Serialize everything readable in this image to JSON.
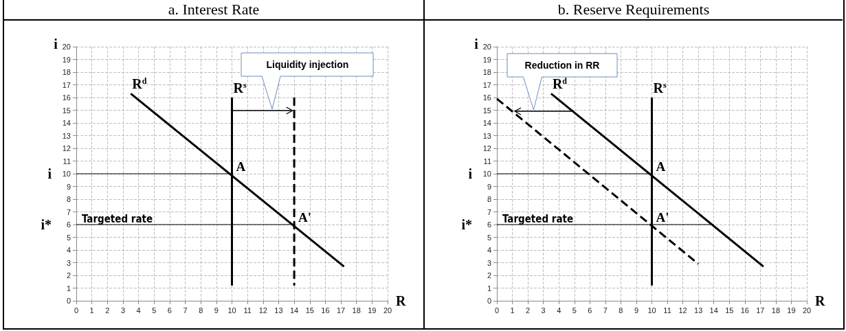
{
  "chart_data": [
    {
      "type": "line",
      "title": "a. Interest Rate",
      "xlabel": "R",
      "ylabel": "i",
      "xlim": [
        0,
        20
      ],
      "ylim": [
        0,
        20
      ],
      "xticks": [
        0,
        1,
        2,
        3,
        4,
        5,
        6,
        7,
        8,
        9,
        10,
        11,
        12,
        13,
        14,
        15,
        16,
        17,
        18,
        19,
        20
      ],
      "yticks": [
        0,
        1,
        2,
        3,
        4,
        5,
        6,
        7,
        8,
        9,
        10,
        11,
        12,
        13,
        14,
        15,
        16,
        17,
        18,
        19,
        20
      ],
      "grid": true,
      "legend": false,
      "marker": "none",
      "series": [
        {
          "name": "R$^{d}$",
          "color": "#000000",
          "x": [
            3.5,
            17.2
          ],
          "values": [
            16.3,
            2.7
          ]
        },
        {
          "name": "R$^{s}$",
          "color": "#000000",
          "x": [
            10,
            10
          ],
          "values": [
            16,
            1.2
          ]
        },
        {
          "color": "#000000",
          "line_style": "dashed",
          "x": [
            14,
            14
          ],
          "values": [
            16,
            1.2
          ]
        },
        {
          "name": "i",
          "color": "#000000",
          "x": [
            0,
            10
          ],
          "values": [
            10,
            10
          ]
        },
        {
          "name": "i*",
          "color": "#000000",
          "x": [
            0,
            14
          ],
          "values": [
            6,
            6
          ]
        }
      ],
      "annotations": [
        {
          "text": "A",
          "x": 10,
          "y": 10
        },
        {
          "text": "A'",
          "x": 14,
          "y": 6
        },
        {
          "text": "Targeted rate",
          "x": 0,
          "y": 6
        },
        "Liquidity injection"
      ]
    },
    {
      "type": "line",
      "title": "b. Reserve Requirements",
      "xlabel": "R",
      "ylabel": "i",
      "xlim": [
        0,
        20
      ],
      "ylim": [
        0,
        20
      ],
      "xticks": [
        0,
        1,
        2,
        3,
        4,
        5,
        6,
        7,
        8,
        9,
        10,
        11,
        12,
        13,
        14,
        15,
        16,
        17,
        18,
        19,
        20
      ],
      "yticks": [
        0,
        1,
        2,
        3,
        4,
        5,
        6,
        7,
        8,
        9,
        10,
        11,
        12,
        13,
        14,
        15,
        16,
        17,
        18,
        19,
        20
      ],
      "grid": true,
      "legend": false,
      "marker": "none",
      "series": [
        {
          "name": "R$^{d}$",
          "color": "#000000",
          "x": [
            3.5,
            17.2
          ],
          "values": [
            16.3,
            2.7
          ]
        },
        {
          "name": "R$^{s}$",
          "color": "#000000",
          "x": [
            10,
            10
          ],
          "values": [
            16,
            1.2
          ]
        },
        {
          "color": "#000000",
          "line_style": "dashed",
          "x": [
            0,
            13
          ],
          "values": [
            15.9,
            2.9
          ]
        },
        {
          "name": "i",
          "color": "#000000",
          "x": [
            0,
            10
          ],
          "values": [
            10,
            10
          ]
        },
        {
          "name": "i*",
          "color": "#000000",
          "x": [
            0,
            14
          ],
          "values": [
            6,
            6
          ]
        }
      ],
      "annotations": [
        {
          "text": "A",
          "x": 10,
          "y": 10
        },
        {
          "text": "A'",
          "x": 10,
          "y": 6
        },
        {
          "text": "Targeted rate",
          "x": 0,
          "y": 6
        },
        "Reduction in RR"
      ]
    }
  ]
}
